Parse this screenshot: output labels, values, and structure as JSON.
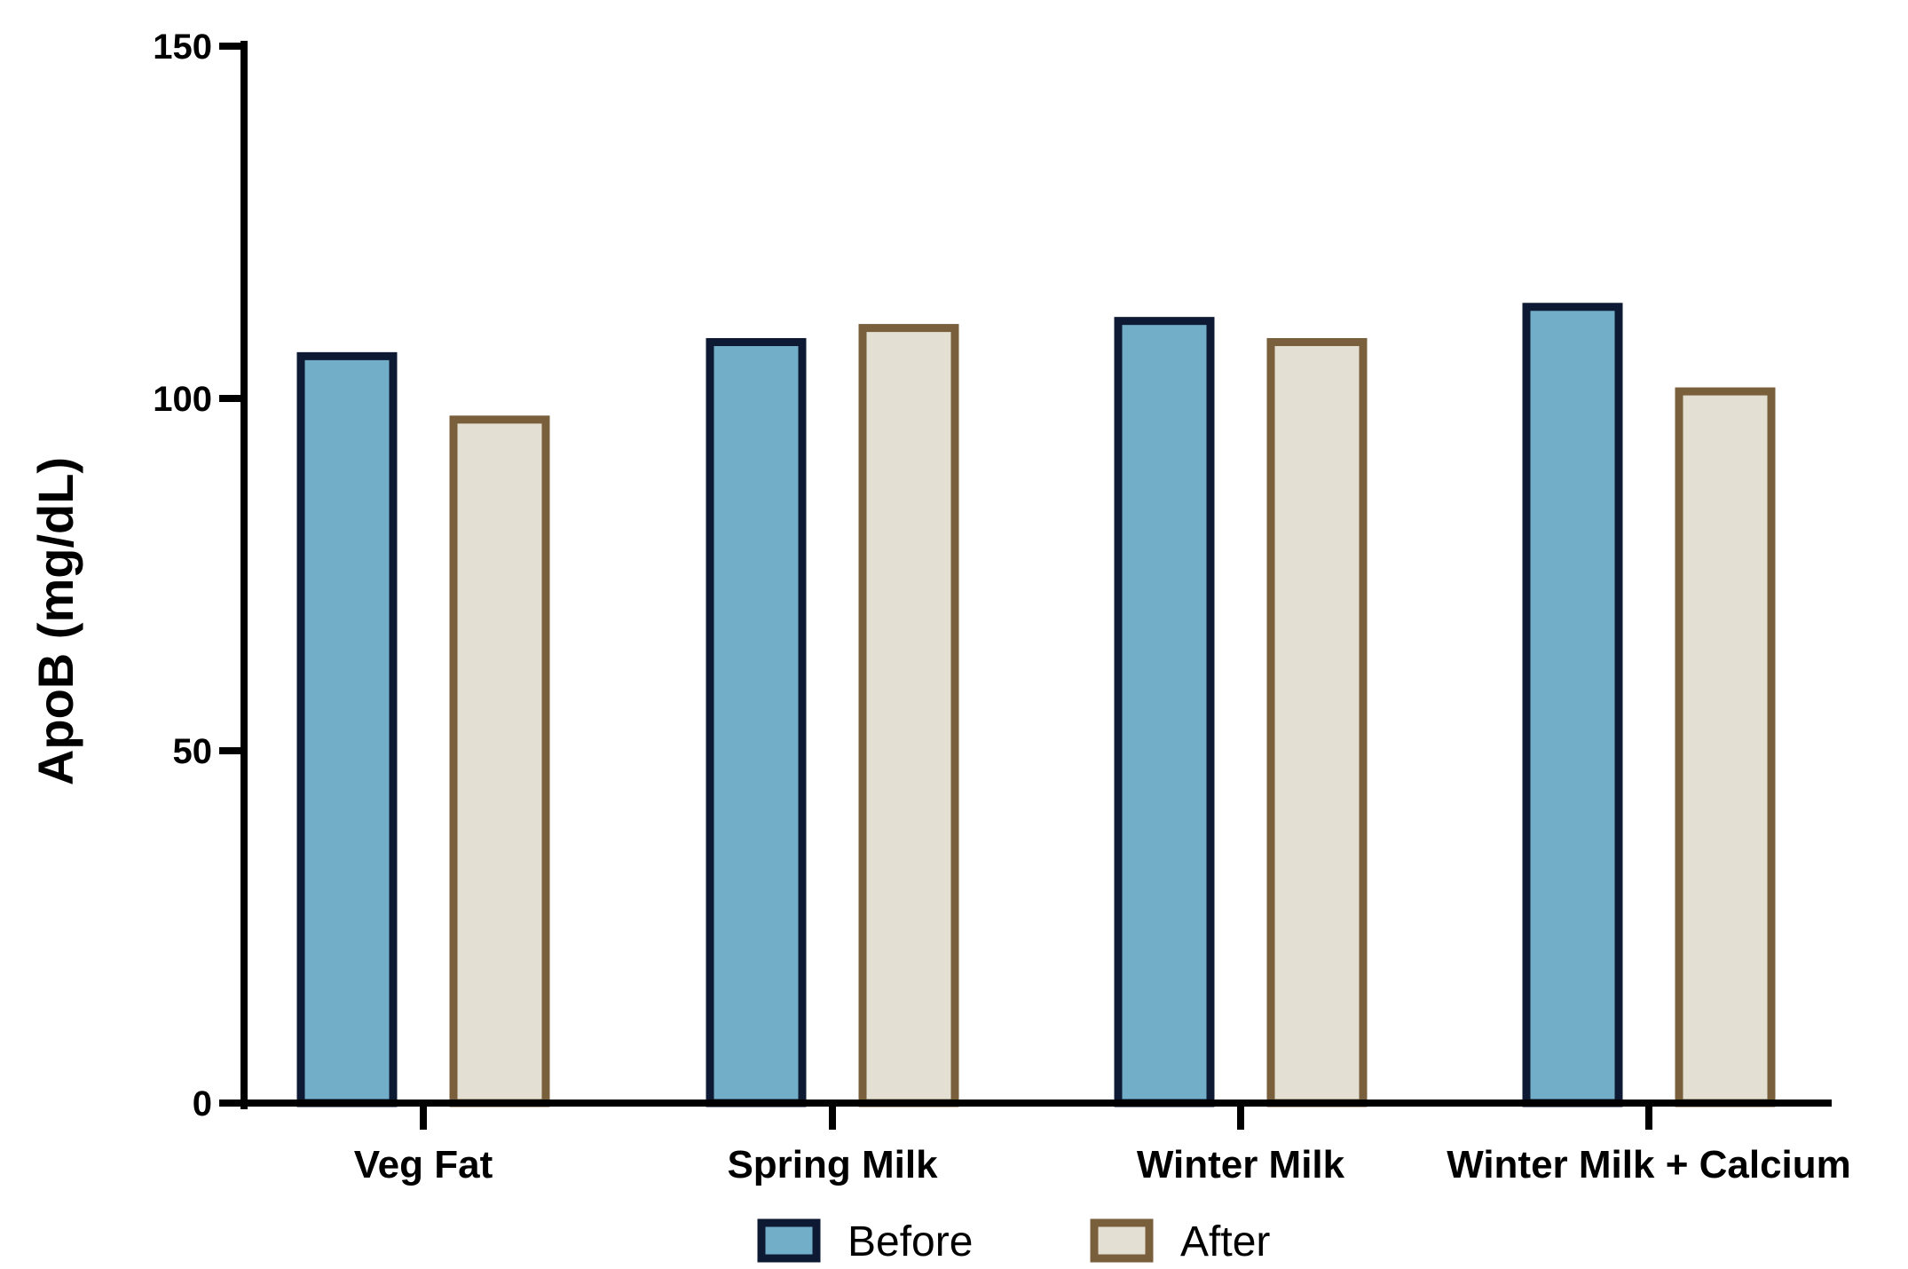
{
  "chart_data": {
    "type": "bar",
    "title": "",
    "xlabel": "",
    "ylabel": "ApoB (mg/dL)",
    "ylim": [
      0,
      150
    ],
    "yticks": [
      0,
      50,
      100,
      150
    ],
    "grid": false,
    "legend_position": "bottom-center",
    "categories": [
      "Veg Fat",
      "Spring Milk",
      "Winter Milk",
      "Winter Milk + Calcium"
    ],
    "series": [
      {
        "name": "Before",
        "values": [
          106,
          108,
          111,
          113
        ],
        "fill": "#72AEC8",
        "stroke": "#0E1A33"
      },
      {
        "name": "After",
        "values": [
          97,
          110,
          108,
          101
        ],
        "fill": "#E3DFD3",
        "stroke": "#7A5F3C"
      }
    ]
  }
}
